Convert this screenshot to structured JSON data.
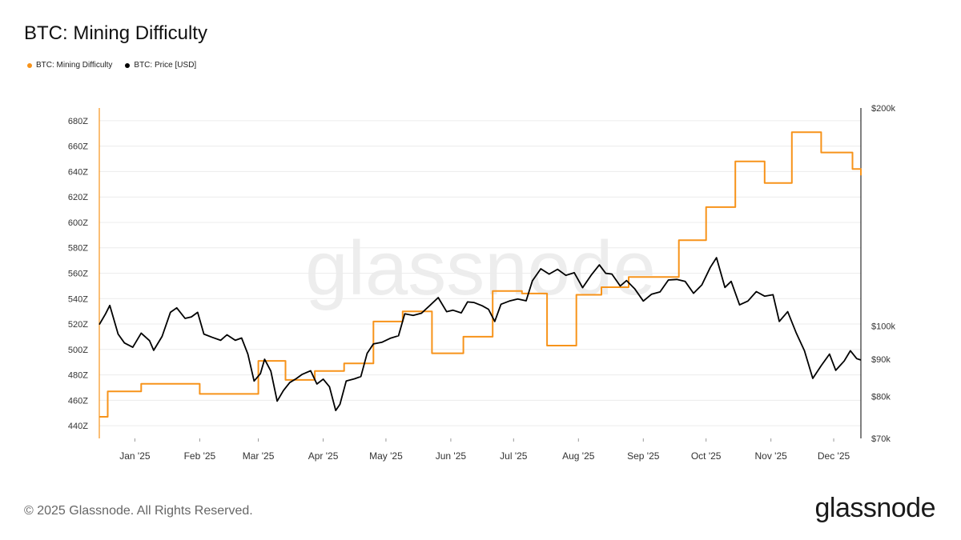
{
  "title": "BTC: Mining Difficulty",
  "legend": [
    {
      "label": "BTC: Mining Difficulty",
      "color": "#f7931a"
    },
    {
      "label": "BTC: Price [USD]",
      "color": "#000000"
    }
  ],
  "footer": "© 2025 Glassnode. All Rights Reserved.",
  "brand": "glassnode",
  "watermark": "glassnode",
  "chart_data": {
    "type": "line",
    "title": "BTC: Mining Difficulty",
    "grid": true,
    "legend_position": "top-left",
    "x_range": [
      "2024-12-15",
      "2025-12-14"
    ],
    "x_ticks": [
      {
        "label": "Jan '25",
        "date": "2025-01-01"
      },
      {
        "label": "Feb '25",
        "date": "2025-02-01"
      },
      {
        "label": "Mar '25",
        "date": "2025-03-01"
      },
      {
        "label": "Apr '25",
        "date": "2025-04-01"
      },
      {
        "label": "May '25",
        "date": "2025-05-01"
      },
      {
        "label": "Jun '25",
        "date": "2025-06-01"
      },
      {
        "label": "Jul '25",
        "date": "2025-07-01"
      },
      {
        "label": "Aug '25",
        "date": "2025-08-01"
      },
      {
        "label": "Sep '25",
        "date": "2025-09-01"
      },
      {
        "label": "Oct '25",
        "date": "2025-10-01"
      },
      {
        "label": "Nov '25",
        "date": "2025-11-01"
      },
      {
        "label": "Dec '25",
        "date": "2025-12-01"
      }
    ],
    "y_left": {
      "scale": "linear",
      "range": [
        430,
        690
      ],
      "unit": "Z",
      "ticks": [
        "440Z",
        "460Z",
        "480Z",
        "500Z",
        "520Z",
        "540Z",
        "560Z",
        "580Z",
        "600Z",
        "620Z",
        "640Z",
        "660Z",
        "680Z"
      ],
      "tick_values": [
        440,
        460,
        480,
        500,
        520,
        540,
        560,
        580,
        600,
        620,
        640,
        660,
        680
      ]
    },
    "y_right": {
      "scale": "log",
      "range": [
        70000,
        200000
      ],
      "ticks": [
        "$70k",
        "$80k",
        "$90k",
        "$100k",
        "$200k"
      ],
      "tick_values": [
        70000,
        80000,
        90000,
        100000,
        200000
      ]
    },
    "series": [
      {
        "name": "BTC: Mining Difficulty",
        "color": "#f7931a",
        "axis": "left",
        "step": true,
        "x": [
          "2024-12-15",
          "2024-12-19",
          "2025-01-04",
          "2025-01-18",
          "2025-02-01",
          "2025-02-14",
          "2025-03-01",
          "2025-03-14",
          "2025-03-28",
          "2025-04-11",
          "2025-04-25",
          "2025-05-09",
          "2025-05-23",
          "2025-06-07",
          "2025-06-21",
          "2025-07-05",
          "2025-07-17",
          "2025-07-31",
          "2025-08-12",
          "2025-08-25",
          "2025-09-05",
          "2025-09-18",
          "2025-10-01",
          "2025-10-15",
          "2025-10-29",
          "2025-11-11",
          "2025-11-25",
          "2025-12-10",
          "2025-12-14"
        ],
        "values": [
          447,
          467,
          473,
          473,
          465,
          465,
          491,
          476,
          483,
          489,
          522,
          530,
          497,
          510,
          546,
          544,
          503,
          543,
          549,
          557,
          557,
          586,
          612,
          648,
          631,
          671,
          655,
          642,
          637
        ]
      },
      {
        "name": "BTC: Price [USD]",
        "color": "#000000",
        "axis": "right",
        "x": [
          "2024-12-15",
          "2024-12-18",
          "2024-12-20",
          "2024-12-24",
          "2024-12-27",
          "2024-12-31",
          "2025-01-04",
          "2025-01-08",
          "2025-01-10",
          "2025-01-14",
          "2025-01-18",
          "2025-01-21",
          "2025-01-25",
          "2025-01-28",
          "2025-01-31",
          "2025-02-03",
          "2025-02-07",
          "2025-02-11",
          "2025-02-14",
          "2025-02-18",
          "2025-02-21",
          "2025-02-24",
          "2025-02-27",
          "2025-03-02",
          "2025-03-04",
          "2025-03-07",
          "2025-03-10",
          "2025-03-13",
          "2025-03-16",
          "2025-03-19",
          "2025-03-22",
          "2025-03-26",
          "2025-03-29",
          "2025-04-01",
          "2025-04-04",
          "2025-04-07",
          "2025-04-09",
          "2025-04-12",
          "2025-04-16",
          "2025-04-19",
          "2025-04-22",
          "2025-04-25",
          "2025-04-29",
          "2025-05-03",
          "2025-05-07",
          "2025-05-10",
          "2025-05-14",
          "2025-05-18",
          "2025-05-22",
          "2025-05-26",
          "2025-05-30",
          "2025-06-02",
          "2025-06-06",
          "2025-06-09",
          "2025-06-12",
          "2025-06-16",
          "2025-06-19",
          "2025-06-22",
          "2025-06-25",
          "2025-06-29",
          "2025-07-03",
          "2025-07-07",
          "2025-07-10",
          "2025-07-14",
          "2025-07-18",
          "2025-07-22",
          "2025-07-26",
          "2025-07-30",
          "2025-08-03",
          "2025-08-07",
          "2025-08-11",
          "2025-08-14",
          "2025-08-17",
          "2025-08-21",
          "2025-08-24",
          "2025-08-28",
          "2025-09-01",
          "2025-09-05",
          "2025-09-09",
          "2025-09-13",
          "2025-09-17",
          "2025-09-21",
          "2025-09-25",
          "2025-09-29",
          "2025-10-03",
          "2025-10-06",
          "2025-10-10",
          "2025-10-13",
          "2025-10-17",
          "2025-10-21",
          "2025-10-25",
          "2025-10-29",
          "2025-11-02",
          "2025-11-05",
          "2025-11-09",
          "2025-11-13",
          "2025-11-17",
          "2025-11-21",
          "2025-11-25",
          "2025-11-29",
          "2025-12-02",
          "2025-12-06",
          "2025-12-09",
          "2025-12-12",
          "2025-12-14"
        ],
        "values": [
          100500,
          104000,
          106800,
          97500,
          94800,
          93500,
          97800,
          95500,
          92600,
          96800,
          104500,
          106000,
          102500,
          103000,
          104500,
          97500,
          96500,
          95600,
          97300,
          95600,
          96300,
          91500,
          84000,
          86000,
          90000,
          86700,
          78800,
          81500,
          83600,
          84600,
          85800,
          86800,
          83200,
          84500,
          82500,
          76500,
          78000,
          84000,
          84600,
          85200,
          91700,
          94500,
          95000,
          96200,
          97000,
          104000,
          103500,
          104200,
          106800,
          109500,
          104700,
          105200,
          104300,
          108000,
          107800,
          106700,
          105500,
          101500,
          107200,
          108300,
          109000,
          108400,
          115500,
          120000,
          118000,
          119800,
          117500,
          118500,
          113000,
          117500,
          121500,
          118300,
          118000,
          113600,
          115600,
          112500,
          108300,
          110700,
          111500,
          115800,
          116000,
          115300,
          111000,
          114000,
          120500,
          124300,
          113100,
          115300,
          107000,
          108300,
          111600,
          110000,
          110500,
          101500,
          104700,
          98000,
          92500,
          84700,
          88200,
          91500,
          86900,
          89500,
          92500,
          90200,
          89800
        ]
      }
    ]
  }
}
